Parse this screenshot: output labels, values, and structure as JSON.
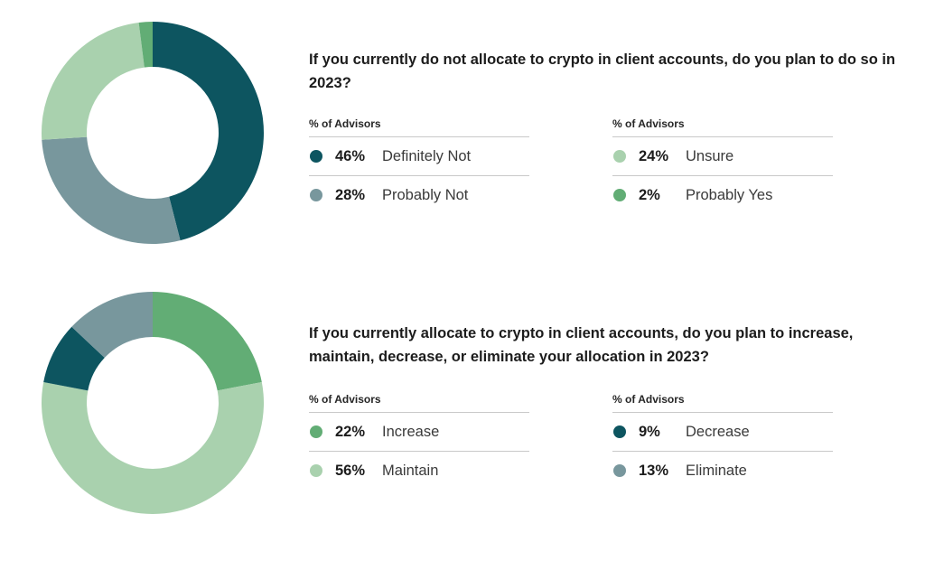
{
  "chart_data": [
    {
      "type": "pie",
      "style": "donut",
      "title": "If you currently do not allocate to crypto in client accounts, do you plan to do so in 2023?",
      "legend_label": "% of Advisors",
      "slices": [
        {
          "name": "Definitely Not",
          "value": 46,
          "label": "46%",
          "color": "#0d5560"
        },
        {
          "name": "Probably Not",
          "value": 28,
          "label": "28%",
          "color": "#78979d"
        },
        {
          "name": "Unsure",
          "value": 24,
          "label": "24%",
          "color": "#a9d1ae"
        },
        {
          "name": "Probably Yes",
          "value": 2,
          "label": "2%",
          "color": "#62ad75"
        }
      ]
    },
    {
      "type": "pie",
      "style": "donut",
      "title": "If you currently allocate to crypto in client accounts, do you plan to increase, maintain, decrease, or eliminate your allocation in 2023?",
      "legend_label": "% of Advisors",
      "slices": [
        {
          "name": "Increase",
          "value": 22,
          "label": "22%",
          "color": "#62ad75"
        },
        {
          "name": "Maintain",
          "value": 56,
          "label": "56%",
          "color": "#a9d1ae"
        },
        {
          "name": "Decrease",
          "value": 9,
          "label": "9%",
          "color": "#0d5560"
        },
        {
          "name": "Eliminate",
          "value": 13,
          "label": "13%",
          "color": "#78979d"
        }
      ]
    }
  ]
}
